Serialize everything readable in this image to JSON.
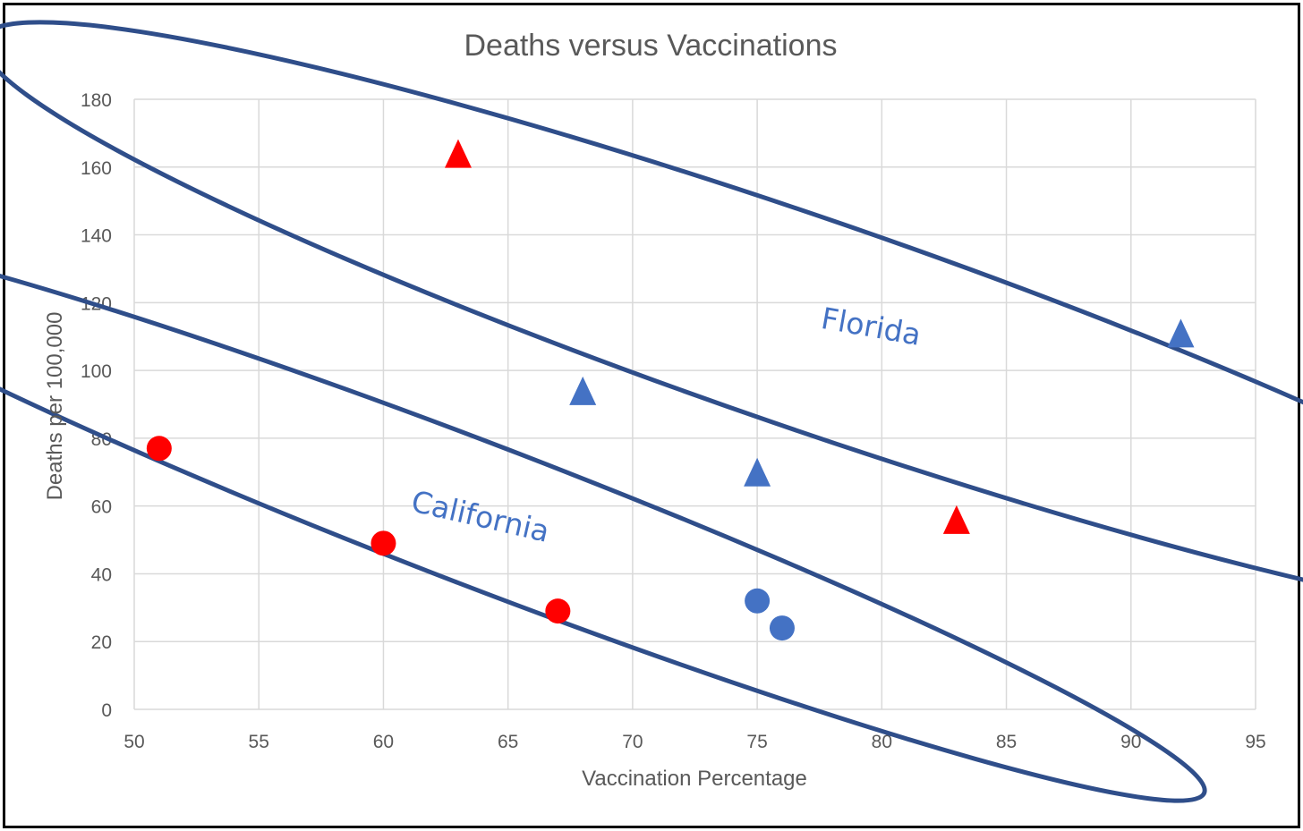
{
  "chart_data": {
    "type": "scatter",
    "title": "Deaths versus Vaccinations",
    "xlabel": "Vaccination Percentage",
    "ylabel": "Deaths per 100,000",
    "xlim": [
      50,
      95
    ],
    "ylim": [
      0,
      180
    ],
    "x_ticks": [
      50,
      55,
      60,
      65,
      70,
      75,
      80,
      85,
      90,
      95
    ],
    "y_ticks": [
      0,
      20,
      40,
      60,
      80,
      100,
      120,
      140,
      160,
      180
    ],
    "grid": true,
    "series": [
      {
        "name": "red-circles",
        "marker": "circle",
        "color": "#ff0000",
        "points": [
          {
            "x": 51,
            "y": 77
          },
          {
            "x": 60,
            "y": 49
          },
          {
            "x": 67,
            "y": 29
          }
        ]
      },
      {
        "name": "blue-circles",
        "marker": "circle",
        "color": "#4472c4",
        "points": [
          {
            "x": 75,
            "y": 32
          },
          {
            "x": 76,
            "y": 24
          }
        ]
      },
      {
        "name": "red-triangles",
        "marker": "triangle",
        "color": "#ff0000",
        "points": [
          {
            "x": 63,
            "y": 164
          },
          {
            "x": 83,
            "y": 56
          }
        ]
      },
      {
        "name": "blue-triangles",
        "marker": "triangle",
        "color": "#4472c4",
        "points": [
          {
            "x": 68,
            "y": 94
          },
          {
            "x": 75,
            "y": 70
          },
          {
            "x": 92,
            "y": 111
          }
        ]
      }
    ],
    "annotations": [
      {
        "text": "Florida",
        "x": 79.5,
        "y": 110,
        "rotation_deg": 10
      },
      {
        "text": "California",
        "x": 63.8,
        "y": 54,
        "rotation_deg": 13
      }
    ],
    "groupings": [
      {
        "label": "Florida",
        "color": "#2f4e8a",
        "center": {
          "x": 77,
          "y": 114
        },
        "rx_data": 35,
        "ry_data": 31,
        "rotation_deg": 19
      },
      {
        "label": "California",
        "color": "#2f4e8a",
        "center": {
          "x": 64,
          "y": 57
        },
        "rx_data": 31,
        "ry_data": 21,
        "rotation_deg": 21
      }
    ]
  }
}
